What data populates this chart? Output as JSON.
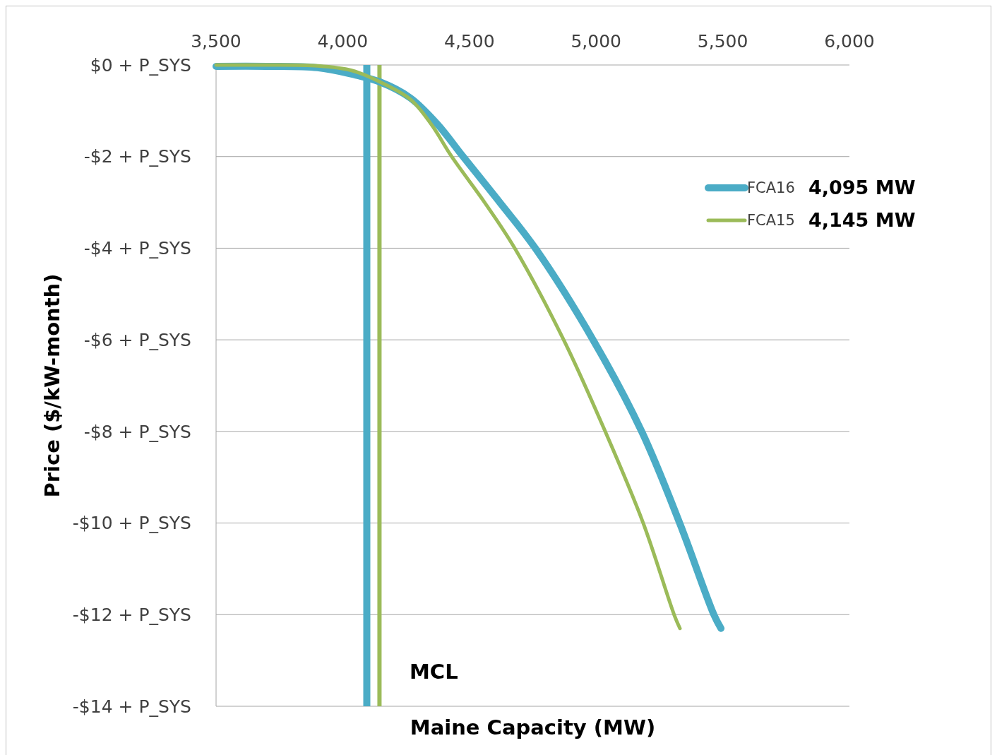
{
  "chart_data": {
    "type": "line",
    "xlabel": "Maine Capacity (MW)",
    "ylabel": "Price ($/kW-month)",
    "xlim": [
      3500,
      6000
    ],
    "xticks": [
      {
        "value": 3500,
        "label": "3,500"
      },
      {
        "value": 4000,
        "label": "4,000"
      },
      {
        "value": 4500,
        "label": "4,500"
      },
      {
        "value": 5000,
        "label": "5,000"
      },
      {
        "value": 5500,
        "label": "5,500"
      },
      {
        "value": 6000,
        "label": "6,000"
      }
    ],
    "ylim": [
      -14,
      0
    ],
    "yticks": [
      {
        "value": 0,
        "label": "$0 + P_SYS"
      },
      {
        "value": -2,
        "label": "-$2 + P_SYS"
      },
      {
        "value": -4,
        "label": "-$4 + P_SYS"
      },
      {
        "value": -6,
        "label": "-$6 + P_SYS"
      },
      {
        "value": -8,
        "label": "-$8 + P_SYS"
      },
      {
        "value": -10,
        "label": "-$10 + P_SYS"
      },
      {
        "value": -12,
        "label": "-$12 + P_SYS"
      },
      {
        "value": -14,
        "label": "-$14 + P_SYS"
      }
    ],
    "grid": "y",
    "legend": "right",
    "series": [
      {
        "name": "FCA16",
        "color": "#4bacc6",
        "x": [
          3500,
          3700,
          3900,
          4035,
          4147,
          4267,
          4375,
          4475,
          4620,
          4760,
          4988,
          5180,
          5330,
          5465,
          5493
        ],
        "values": [
          -0.03,
          -0.03,
          -0.06,
          -0.2,
          -0.37,
          -0.72,
          -1.3,
          -2,
          -3,
          -4,
          -6,
          -8,
          -10,
          -12,
          -12.3
        ]
      },
      {
        "name": "FCA15",
        "color": "#9bbb59",
        "x": [
          3500,
          3700,
          3900,
          4035,
          4147,
          4267,
          4350,
          4430,
          4560,
          4679,
          4872,
          5036,
          5186,
          5308,
          5331
        ],
        "values": [
          0,
          0,
          -0.02,
          -0.12,
          -0.37,
          -0.75,
          -1.3,
          -2,
          -3,
          -4,
          -6,
          -8,
          -10,
          -12,
          -12.3
        ]
      }
    ],
    "ref_lines": [
      {
        "axis": "x",
        "value": 4095,
        "color": "#4bacc6"
      },
      {
        "axis": "x",
        "value": 4145,
        "color": "#9bbb59"
      }
    ],
    "annotations": [
      "4,095 MW",
      "4,145 MW",
      "MCL"
    ]
  }
}
